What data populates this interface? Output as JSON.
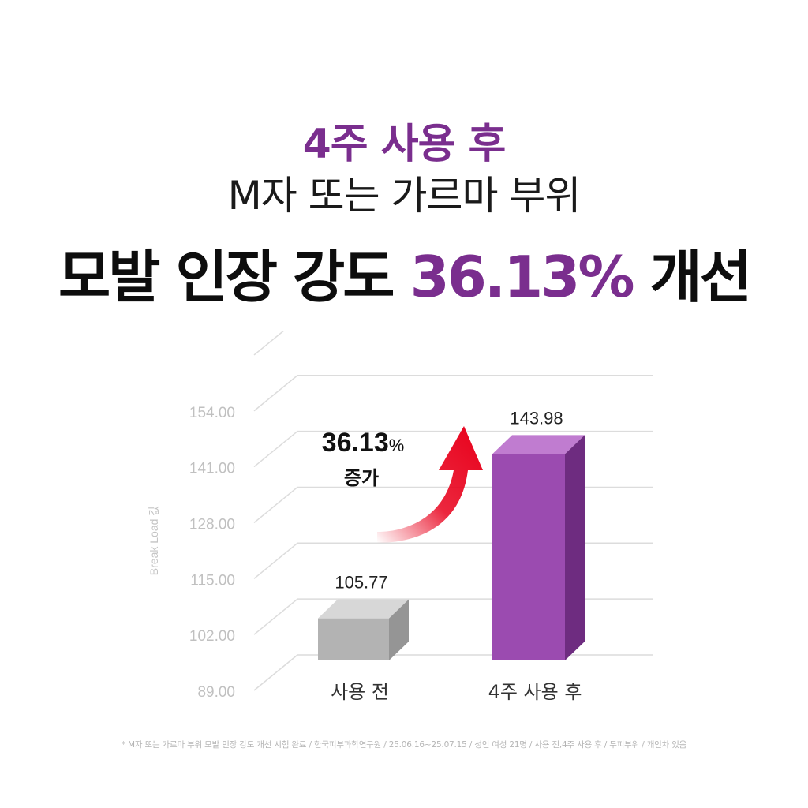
{
  "headline": {
    "line1": "4주 사용 후",
    "line2": "M자 또는 가르마 부위",
    "line3_prefix": "모발 인장 강도 ",
    "line3_value": "36.13%",
    "line3_suffix": " 개선"
  },
  "annotation": {
    "value": "36.13",
    "unit": "%",
    "label": "증가"
  },
  "colors": {
    "accent": "#7a2e8e",
    "before_bar": "#b3b3b3",
    "after_bar": "#9b4bb0",
    "arrow": "#e8001b"
  },
  "chart_data": {
    "type": "bar",
    "categories": [
      "사용 전",
      "4주 사용 후"
    ],
    "values": [
      105.77,
      143.98
    ],
    "value_labels": [
      "105.77",
      "143.98"
    ],
    "ylabel": "Break Load 값",
    "ylim": [
      89,
      167
    ],
    "yticks": [
      89,
      102,
      115,
      128,
      141,
      154
    ],
    "ytick_labels": [
      "89.00",
      "102.00",
      "115.00",
      "128.00",
      "141.00",
      "154.00"
    ],
    "grid": true,
    "style": "3d"
  },
  "footnote": "* M자 또는 가르마 부위 모발 인장 강도 개선 시험 완료 / 한국피부과학연구원 / 25.06.16~25.07.15 / 성인 여성 21명 / 사용 전,4주 사용 후 / 두피부위 / 개인차 있음"
}
